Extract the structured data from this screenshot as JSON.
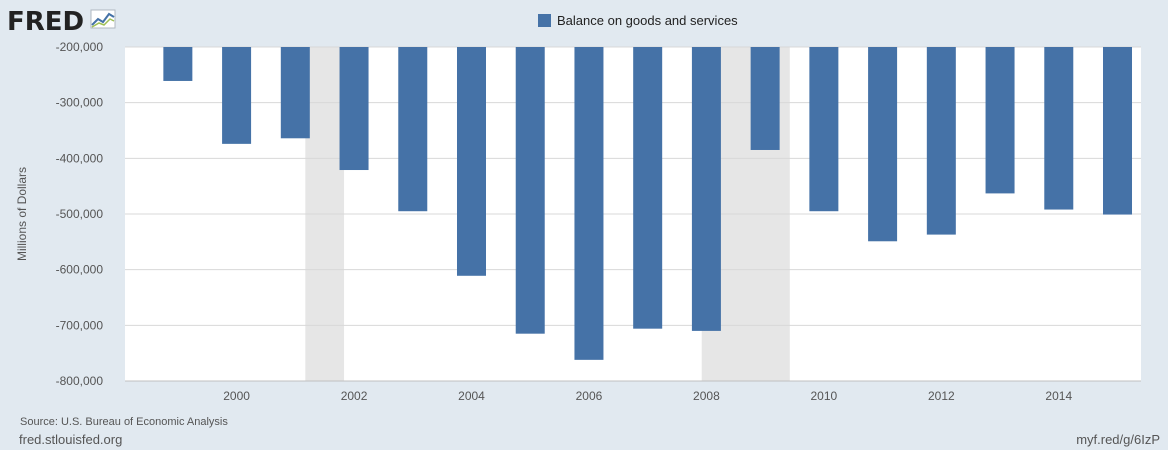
{
  "logo": {
    "text": "FRED"
  },
  "footer": {
    "source": "Source: U.S. Bureau of Economic Analysis",
    "site": "fred.stlouisfed.org",
    "short_url": "myf.red/g/6IzP"
  },
  "colors": {
    "background": "#e1e9f0",
    "plot": "#ffffff",
    "bar": "#4572a7",
    "recession": "#e6e6e6",
    "logo_dark": "#222222",
    "logo_icon": "#4572a7"
  },
  "chart_data": {
    "type": "bar",
    "title": "",
    "xlabel": "",
    "ylabel": "Millions of Dollars",
    "legend": {
      "position": "top-center",
      "entries": [
        "Balance on goods and services"
      ]
    },
    "grid": true,
    "ylim": [
      -800000,
      -200000
    ],
    "xlim": [
      1998.1,
      2015.4
    ],
    "yticks": [
      -200000,
      -300000,
      -400000,
      -500000,
      -600000,
      -700000,
      -800000
    ],
    "ytick_labels": [
      "-200,000",
      "-300,000",
      "-400,000",
      "-500,000",
      "-600,000",
      "-700,000",
      "-800,000"
    ],
    "xticks": [
      2000,
      2002,
      2004,
      2006,
      2008,
      2010,
      2012,
      2014
    ],
    "xtick_labels": [
      "2000",
      "2002",
      "2004",
      "2006",
      "2008",
      "2010",
      "2012",
      "2014"
    ],
    "recessions": [
      [
        2001.17,
        2001.83
      ],
      [
        2007.92,
        2009.42
      ]
    ],
    "x": [
      1999,
      2000,
      2001,
      2002,
      2003,
      2004,
      2005,
      2006,
      2007,
      2008,
      2009,
      2010,
      2011,
      2012,
      2013,
      2014,
      2015
    ],
    "series": [
      {
        "name": "Balance on goods and services",
        "values": [
          -261000,
          -374000,
          -364000,
          -421000,
          -495000,
          -611000,
          -715000,
          -762000,
          -706000,
          -710000,
          -385000,
          -495000,
          -549000,
          -537000,
          -463000,
          -492000,
          -501000
        ]
      }
    ]
  }
}
